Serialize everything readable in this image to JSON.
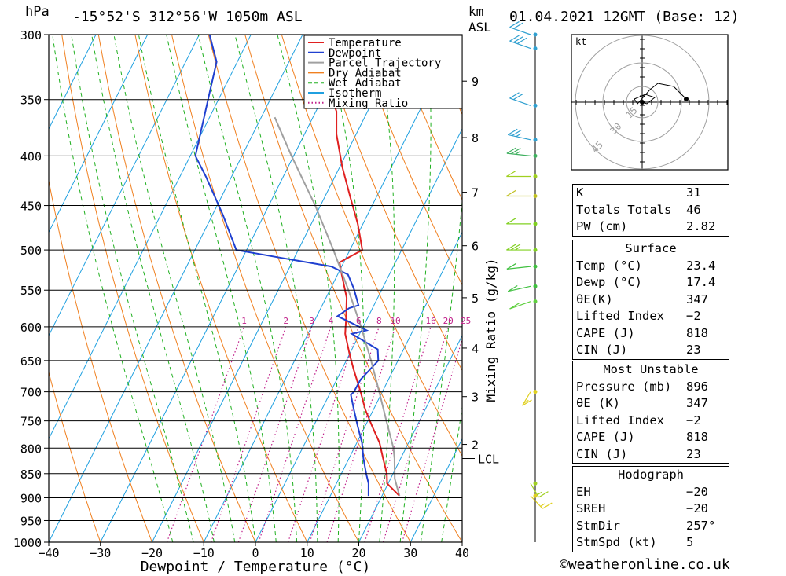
{
  "header": {
    "hpa_label": "hPa",
    "location": "-15°52'S  312°56'W  1050m  ASL",
    "km_label": "km",
    "asl_label": "ASL",
    "datetime": "01.04.2021  12GMT  (Base: 12)"
  },
  "chart_data": {
    "type": "skew-t",
    "xlabel": "Dewpoint / Temperature (°C)",
    "ylabel_right": "Mixing Ratio (g/kg)",
    "pressure_ticks": [
      300,
      350,
      400,
      450,
      500,
      550,
      600,
      650,
      700,
      750,
      800,
      850,
      900,
      950,
      1000
    ],
    "pressure_tick_labels": [
      "300",
      "350",
      "400",
      "450",
      "500",
      "550",
      "600",
      "650",
      "700",
      "750",
      "800",
      "850",
      "900",
      "950",
      "1000"
    ],
    "x_ticks": [
      -40,
      -30,
      -20,
      -10,
      0,
      10,
      20,
      30,
      40
    ],
    "x_tick_labels": [
      "−40",
      "−30",
      "−20",
      "−10",
      "0",
      "10",
      "20",
      "30",
      "40"
    ],
    "km_ticks": [
      {
        "km": 2,
        "p": 793
      },
      {
        "km": 3,
        "p": 708
      },
      {
        "km": 4,
        "p": 631
      },
      {
        "km": 5,
        "p": 560
      },
      {
        "km": 6,
        "p": 495
      },
      {
        "km": 7,
        "p": 436
      },
      {
        "km": 8,
        "p": 383
      },
      {
        "km": 9,
        "p": 335
      }
    ],
    "km_labels": [
      "2",
      "3",
      "4",
      "5",
      "6",
      "7",
      "8",
      "9"
    ],
    "lcl_label": "LCL",
    "lcl_p": 820,
    "mixing_ratio_values": [
      1,
      2,
      3,
      4,
      6,
      8,
      10,
      16,
      20,
      25
    ],
    "mixing_ratio_labels": [
      "1",
      "2",
      "3",
      "4",
      "6",
      "8",
      "10",
      "16",
      "20",
      "25"
    ],
    "legend": [
      "Temperature",
      "Dewpoint",
      "Parcel Trajectory",
      "Dry Adiabat",
      "Wet Adiabat",
      "Isotherm",
      "Mixing Ratio"
    ],
    "series": [
      {
        "name": "Temperature",
        "color": "#e02020",
        "points": [
          [
            896,
            23.4
          ],
          [
            870,
            19.8
          ],
          [
            850,
            18.8
          ],
          [
            820,
            16.6
          ],
          [
            790,
            14.4
          ],
          [
            760,
            11.4
          ],
          [
            730,
            8.4
          ],
          [
            700,
            5.8
          ],
          [
            665,
            2.4
          ],
          [
            640,
            0.0
          ],
          [
            610,
            -2.8
          ],
          [
            590,
            -4.0
          ],
          [
            560,
            -6.0
          ],
          [
            530,
            -9.2
          ],
          [
            515,
            -10.8
          ],
          [
            500,
            -7.6
          ],
          [
            470,
            -11.0
          ],
          [
            440,
            -15.2
          ],
          [
            410,
            -19.6
          ],
          [
            380,
            -23.8
          ],
          [
            360,
            -26.0
          ],
          [
            345,
            -29.0
          ],
          [
            320,
            -32.0
          ],
          [
            300,
            -36.0
          ]
        ]
      },
      {
        "name": "Dewpoint",
        "color": "#2040d0",
        "points": [
          [
            896,
            17.4
          ],
          [
            870,
            16.2
          ],
          [
            850,
            14.8
          ],
          [
            820,
            12.8
          ],
          [
            790,
            11.0
          ],
          [
            760,
            8.6
          ],
          [
            730,
            6.2
          ],
          [
            705,
            4.2
          ],
          [
            700,
            4.5
          ],
          [
            680,
            4.6
          ],
          [
            650,
            6.2
          ],
          [
            633,
            5.0
          ],
          [
            610,
            -1.5
          ],
          [
            605,
            1.0
          ],
          [
            585,
            -6.0
          ],
          [
            574,
            -4.5
          ],
          [
            570,
            -3.0
          ],
          [
            548,
            -5.5
          ],
          [
            530,
            -8.0
          ],
          [
            520,
            -12.0
          ],
          [
            510,
            -22.0
          ],
          [
            500,
            -32.0
          ],
          [
            460,
            -38.0
          ],
          [
            420,
            -45.0
          ],
          [
            400,
            -49.0
          ],
          [
            350,
            -52.0
          ],
          [
            320,
            -54.0
          ],
          [
            300,
            -58.0
          ]
        ]
      },
      {
        "name": "Parcel Trajectory",
        "color": "#a0a0a0",
        "points": [
          [
            896,
            23.4
          ],
          [
            860,
            20.8
          ],
          [
            820,
            18.8
          ],
          [
            800,
            17.6
          ],
          [
            750,
            13.6
          ],
          [
            700,
            9.4
          ],
          [
            650,
            4.8
          ],
          [
            600,
            -0.4
          ],
          [
            550,
            -6.4
          ],
          [
            500,
            -13.2
          ],
          [
            450,
            -21.0
          ],
          [
            400,
            -30.4
          ],
          [
            365,
            -37.4
          ]
        ]
      }
    ]
  },
  "wind_profile": {
    "title": "wind barbs",
    "levels": [
      {
        "p": 300,
        "dir": 300,
        "kt": 20,
        "color": "#30a0d0"
      },
      {
        "p": 310,
        "dir": 300,
        "kt": 30,
        "color": "#30a0d0"
      },
      {
        "p": 355,
        "dir": 300,
        "kt": 20,
        "color": "#30a0d0"
      },
      {
        "p": 385,
        "dir": 290,
        "kt": 15,
        "color": "#30a0d0"
      },
      {
        "p": 400,
        "dir": 280,
        "kt": 15,
        "color": "#40b060"
      },
      {
        "p": 420,
        "dir": 270,
        "kt": 10,
        "color": "#a0d020"
      },
      {
        "p": 440,
        "dir": 270,
        "kt": 10,
        "color": "#c0c020"
      },
      {
        "p": 470,
        "dir": 270,
        "kt": 10,
        "color": "#80d020"
      },
      {
        "p": 500,
        "dir": 270,
        "kt": 15,
        "color": "#80d020"
      },
      {
        "p": 520,
        "dir": 260,
        "kt": 10,
        "color": "#40c040"
      },
      {
        "p": 545,
        "dir": 250,
        "kt": 10,
        "color": "#40c040"
      },
      {
        "p": 565,
        "dir": 240,
        "kt": 10,
        "color": "#60d040"
      },
      {
        "p": 700,
        "dir": 200,
        "kt": 5,
        "color": "#e0d020"
      },
      {
        "p": 870,
        "dir": 160,
        "kt": 5,
        "color": "#a0d020"
      },
      {
        "p": 896,
        "dir": 150,
        "kt": 5,
        "color": "#e0d020"
      }
    ]
  },
  "hodograph": {
    "unit_label": "kt",
    "ring_labels": [
      "15",
      "30",
      "45"
    ],
    "path": [
      [
        0,
        0
      ],
      [
        3,
        -1
      ],
      [
        8,
        3
      ],
      [
        2,
        5
      ],
      [
        -5,
        2
      ],
      [
        -3,
        -1
      ],
      [
        5,
        8
      ],
      [
        10,
        12
      ],
      [
        20,
        10
      ],
      [
        28,
        2
      ]
    ]
  },
  "indices": {
    "rows": [
      {
        "label": "K",
        "value": "31"
      },
      {
        "label": "Totals Totals",
        "value": "46"
      },
      {
        "label": "PW (cm)",
        "value": "2.82"
      }
    ]
  },
  "surface": {
    "title": "Surface",
    "rows": [
      {
        "label": "Temp (°C)",
        "value": "23.4"
      },
      {
        "label": "Dewp (°C)",
        "value": "17.4"
      },
      {
        "label": "θE(K)",
        "value": "347"
      },
      {
        "label": "Lifted Index",
        "value": "−2"
      },
      {
        "label": "CAPE (J)",
        "value": "818"
      },
      {
        "label": "CIN (J)",
        "value": "23"
      }
    ]
  },
  "most_unstable": {
    "title": "Most Unstable",
    "rows": [
      {
        "label": "Pressure (mb)",
        "value": "896"
      },
      {
        "label": "θE (K)",
        "value": "347"
      },
      {
        "label": "Lifted Index",
        "value": "−2"
      },
      {
        "label": "CAPE (J)",
        "value": "818"
      },
      {
        "label": "CIN (J)",
        "value": "23"
      }
    ]
  },
  "hodograph_table": {
    "title": "Hodograph",
    "rows": [
      {
        "label": "EH",
        "value": "−20"
      },
      {
        "label": "SREH",
        "value": "−20"
      },
      {
        "label": "StmDir",
        "value": "257°"
      },
      {
        "label": "StmSpd (kt)",
        "value": "5"
      }
    ]
  },
  "footer": {
    "copyright": "©weatheronline.co.uk"
  },
  "colors": {
    "temperature": "#e02020",
    "dewpoint": "#2040d0",
    "parcel": "#a0a0a0",
    "dry_adiabat": "#f08020",
    "wet_adiabat": "#20b020",
    "isotherm": "#20a0e0",
    "mixing_ratio": "#c0208a"
  }
}
